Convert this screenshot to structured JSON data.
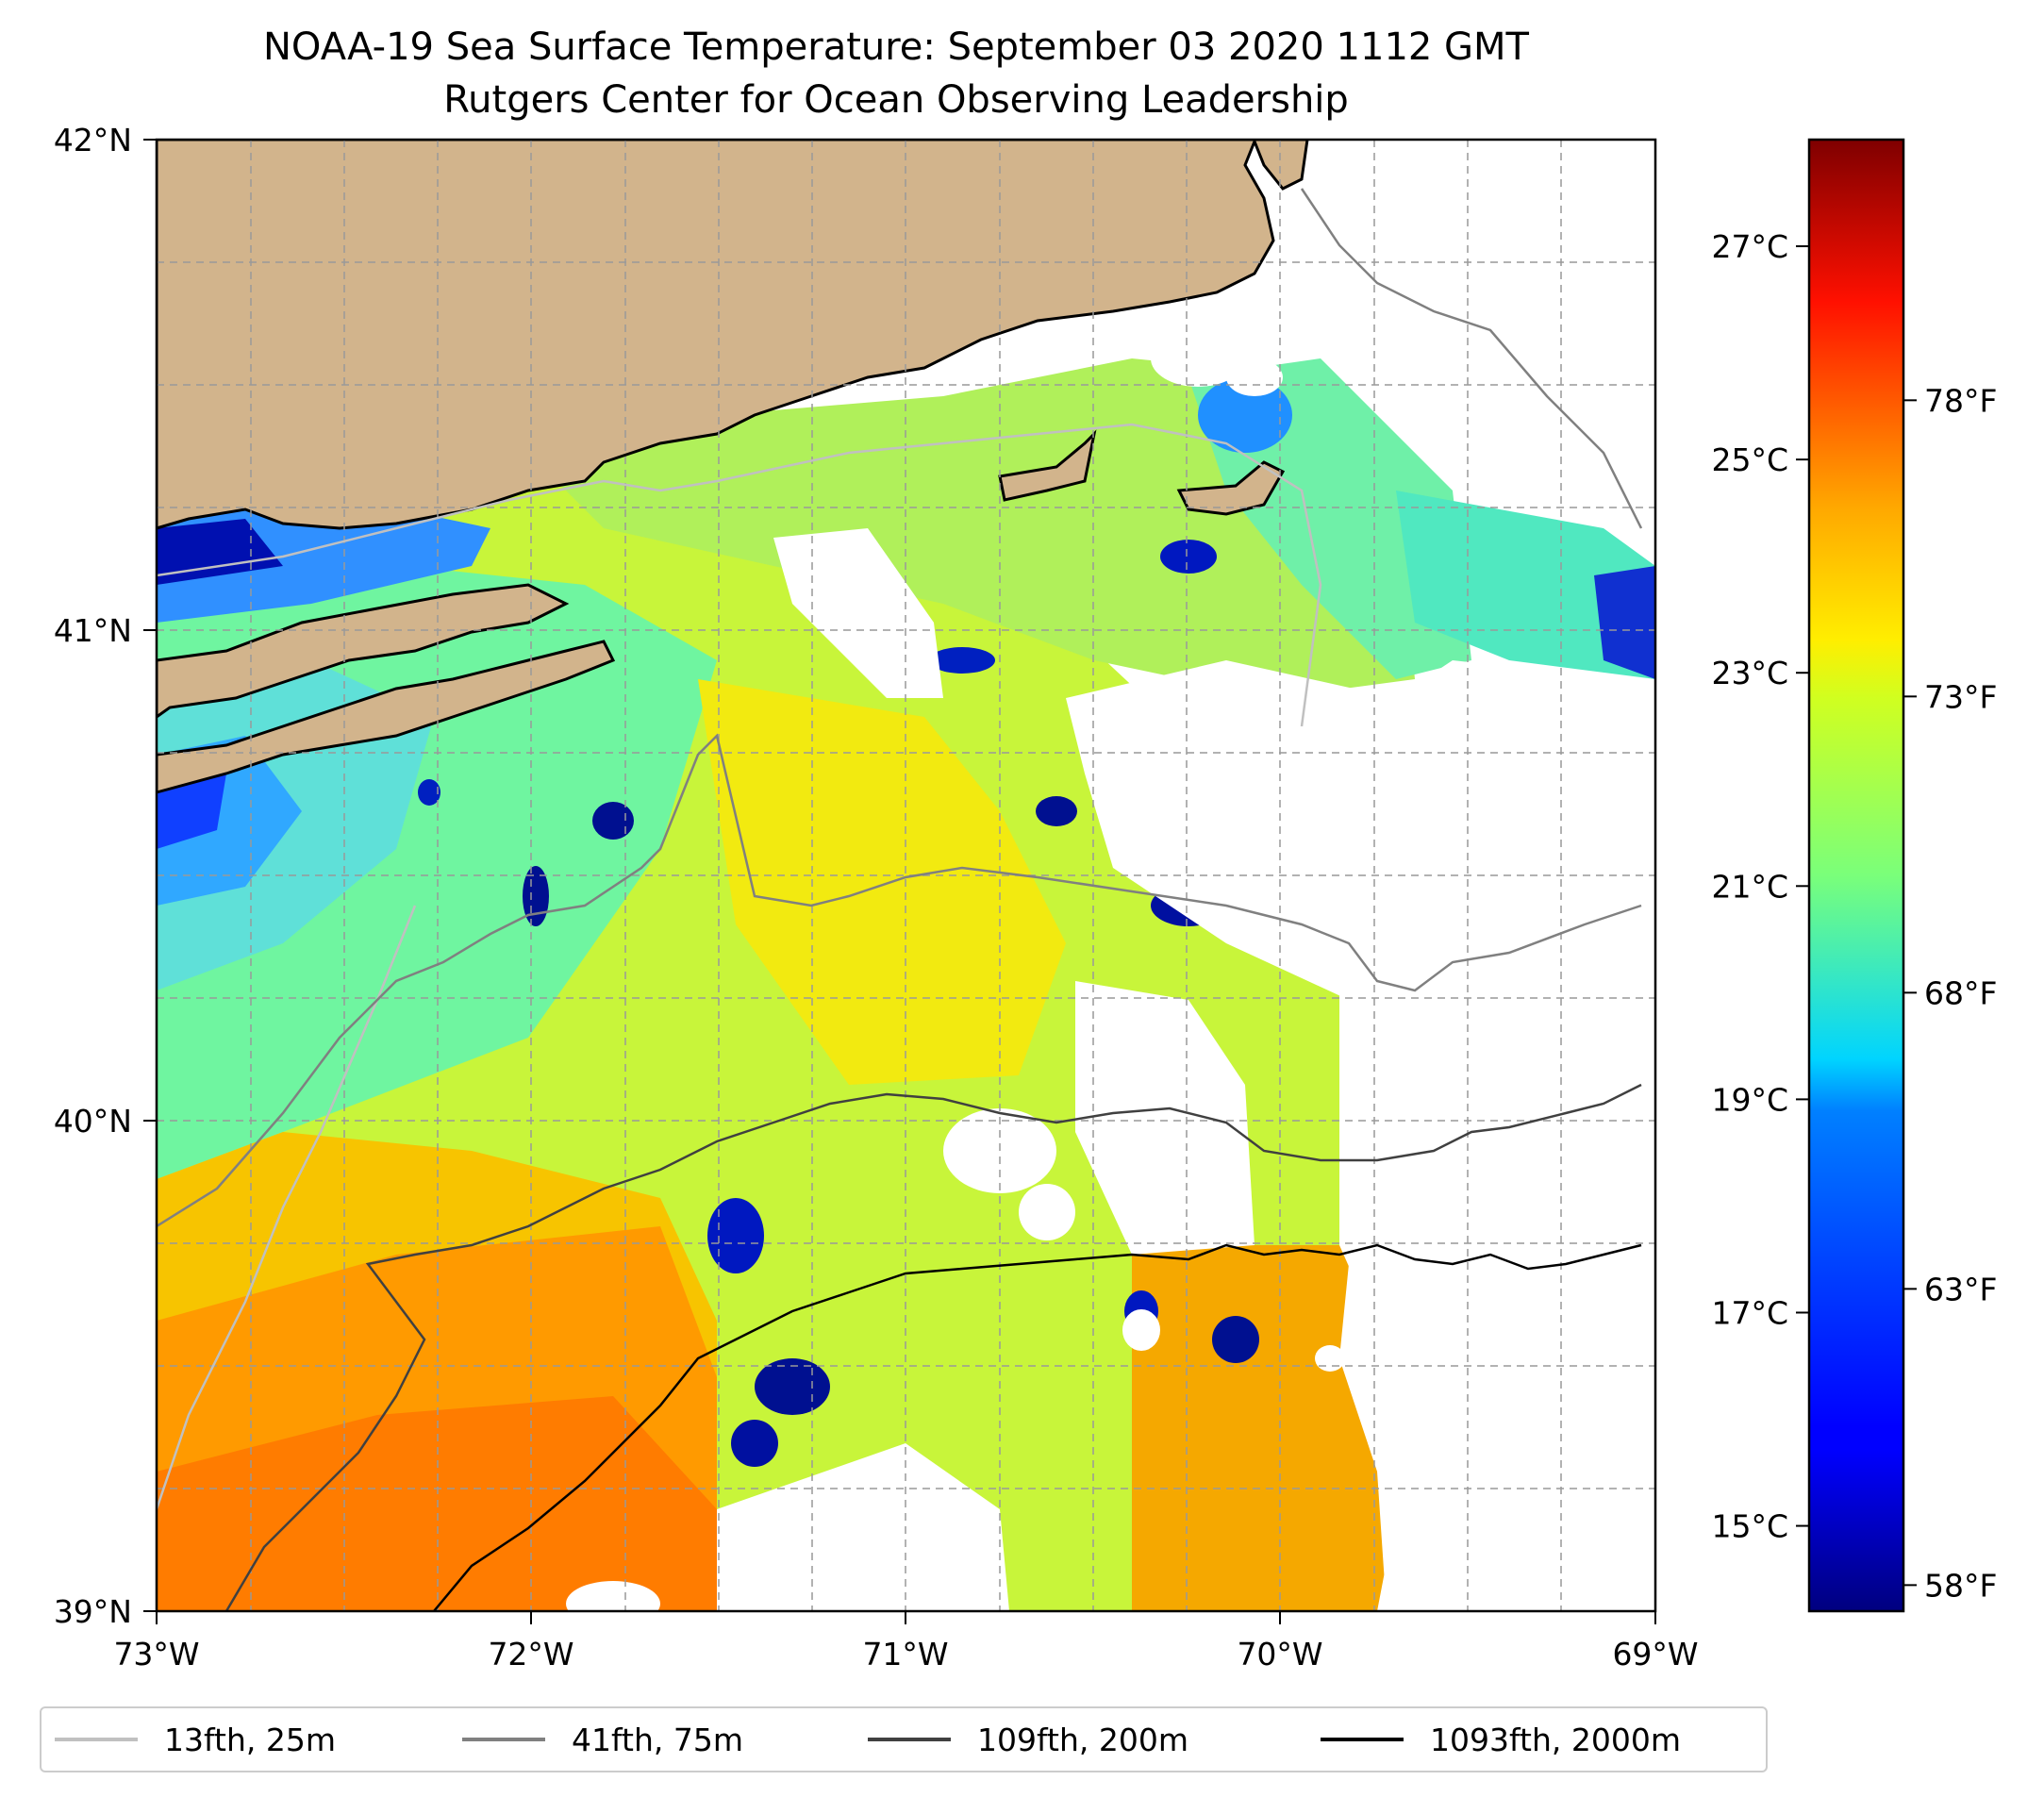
{
  "title": {
    "line1": "NOAA-19 Sea Surface Temperature: September 03 2020 1112 GMT",
    "line2": "Rutgers Center for Ocean Observing Leadership"
  },
  "map": {
    "lon_range": [
      -73,
      -69
    ],
    "lat_range": [
      39,
      42
    ],
    "x_ticks": [
      "73°W",
      "72°W",
      "71°W",
      "70°W",
      "69°W"
    ],
    "y_ticks": [
      "39°N",
      "40°N",
      "41°N",
      "42°N"
    ],
    "land_color": "#d2b48c",
    "gridlines": true
  },
  "colorbar": {
    "colormap": "jet",
    "range_c": [
      14.2,
      28.0
    ],
    "celsius_ticks": [
      "15°C",
      "17°C",
      "19°C",
      "21°C",
      "23°C",
      "25°C",
      "27°C"
    ],
    "fahrenheit_ticks": [
      "58°F",
      "63°F",
      "68°F",
      "73°F",
      "78°F"
    ]
  },
  "legend": {
    "items": [
      {
        "label": "13fth, 25m",
        "color": "#c0c0c0"
      },
      {
        "label": "41fth, 75m",
        "color": "#808080"
      },
      {
        "label": "109fth, 200m",
        "color": "#404040"
      },
      {
        "label": "1093fth, 2000m",
        "color": "#000000"
      }
    ]
  }
}
